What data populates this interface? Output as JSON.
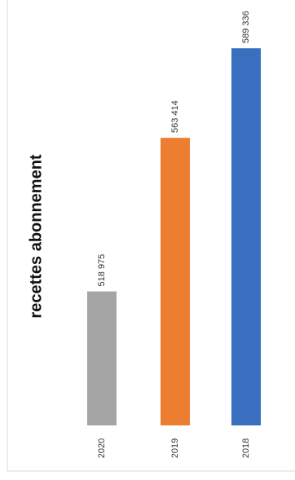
{
  "chart_data": {
    "type": "bar",
    "title": "recettes abonnement",
    "categories": [
      "2020",
      "2019",
      "2018"
    ],
    "values": [
      518975,
      563414,
      589336
    ],
    "value_labels": [
      "518 975",
      "563 414",
      "589 336"
    ],
    "colors": [
      "#a5a5a5",
      "#ed7d31",
      "#3a6fc0"
    ],
    "ylim": [
      480200,
      600000
    ]
  }
}
